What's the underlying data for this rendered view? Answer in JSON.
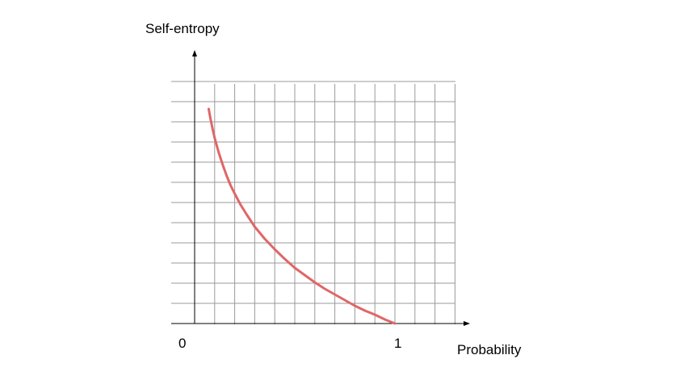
{
  "chart_data": {
    "type": "line",
    "title": "",
    "xlabel": "Probability",
    "ylabel": "Self-entropy",
    "x_tick_labels": [
      "0",
      "1"
    ],
    "xlim": [
      0,
      1.3
    ],
    "ylim": [
      0,
      3.4
    ],
    "grid": true,
    "legend": "none",
    "series": [
      {
        "color": "#e06666",
        "x": [
          0.07,
          0.08,
          0.09,
          0.1,
          0.12,
          0.14,
          0.16,
          0.18,
          0.2,
          0.23,
          0.26,
          0.3,
          0.35,
          0.4,
          0.45,
          0.5,
          0.55,
          0.6,
          0.65,
          0.7,
          0.75,
          0.8,
          0.85,
          0.9,
          0.95,
          1.0
        ],
        "y": [
          2.66,
          2.53,
          2.41,
          2.3,
          2.12,
          1.97,
          1.83,
          1.71,
          1.61,
          1.47,
          1.35,
          1.2,
          1.05,
          0.92,
          0.8,
          0.69,
          0.6,
          0.51,
          0.43,
          0.36,
          0.29,
          0.22,
          0.16,
          0.11,
          0.05,
          0.0
        ]
      }
    ],
    "colors": {
      "grid": "#9a9a9a",
      "axis": "#000000"
    }
  }
}
